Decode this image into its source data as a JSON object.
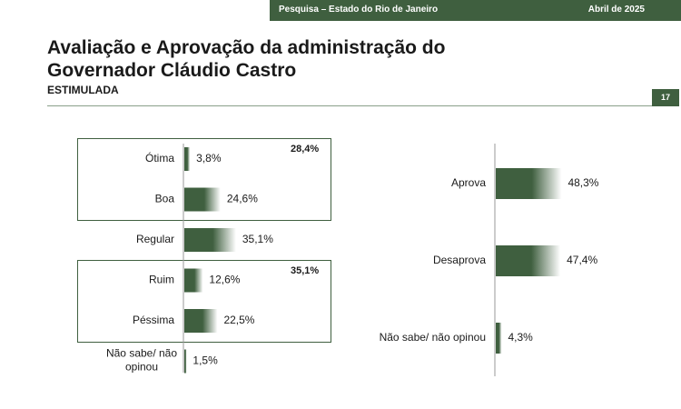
{
  "header": {
    "survey": "Pesquisa – Estado do Rio de Janeiro",
    "date": "Abril de 2025",
    "page_number": "17"
  },
  "title_line1": "Avaliação e Aprovação da administração do",
  "title_line2": "Governador Cláudio Castro",
  "subtitle": "ESTIMULADA",
  "groups": {
    "positive_total": "28,4%",
    "negative_total": "35,1%"
  },
  "colors": {
    "bar_dark": "#3f5f3f",
    "bar_light": "#ffffff",
    "accent": "#3f5f3f"
  },
  "chart_data": [
    {
      "type": "bar",
      "orientation": "horizontal",
      "categories": [
        "Ótima",
        "Boa",
        "Regular",
        "Ruim",
        "Péssima",
        "Não sabe/ não opinou"
      ],
      "values": [
        3.8,
        24.6,
        35.1,
        12.6,
        22.5,
        1.5
      ],
      "value_labels": [
        "3,8%",
        "24,6%",
        "35,1%",
        "12,6%",
        "22,5%",
        "1,5%"
      ],
      "title": "",
      "grid": false
    },
    {
      "type": "bar",
      "orientation": "horizontal",
      "categories": [
        "Aprova",
        "Desaprova",
        "Não sabe/ não opinou"
      ],
      "values": [
        48.3,
        47.4,
        4.3
      ],
      "value_labels": [
        "48,3%",
        "47,4%",
        "4,3%"
      ],
      "title": "",
      "grid": false
    }
  ]
}
